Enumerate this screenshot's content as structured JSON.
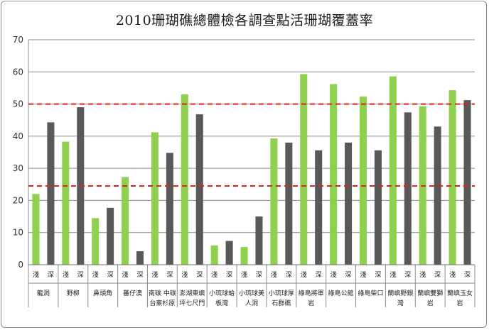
{
  "chart_data": {
    "type": "bar",
    "title": "2010珊瑚礁總體檢各調查點活珊瑚覆蓋率",
    "ylim": [
      0,
      70
    ],
    "yticks": [
      0,
      10,
      20,
      30,
      40,
      50,
      60,
      70
    ],
    "grid": true,
    "reference_lines": [
      50,
      24.5
    ],
    "reference_line_color": "#e0201b",
    "bar_colors": {
      "shallow": "#8fd14f",
      "deep": "#595959"
    },
    "sub_labels": [
      "淺",
      "深"
    ],
    "sites": [
      {
        "label": [
          "龍洞"
        ],
        "shallow": 22,
        "deep": 44.3
      },
      {
        "label": [
          "野柳"
        ],
        "shallow": 38.3,
        "deep": 49
      },
      {
        "label": [
          "鼻頭角"
        ],
        "shallow": 14.5,
        "deep": 17.7
      },
      {
        "label": [
          "蕃仔澳"
        ],
        "shallow": 27.3,
        "deep": 4.2
      },
      {
        "label": [
          "南碳 中碳",
          "台東杉原"
        ],
        "shallow": 41.2,
        "deep": 34.8
      },
      {
        "label": [
          "澎湖東嶼",
          "坪七尺門"
        ],
        "shallow": 53,
        "deep": 46.8
      },
      {
        "label": [
          "小琉球蛤",
          "板灣"
        ],
        "shallow": 6,
        "deep": 7.4
      },
      {
        "label": [
          "小琉球美",
          "人洞"
        ],
        "shallow": 5.5,
        "deep": 15
      },
      {
        "label": [
          "小琉球厚",
          "石群礁"
        ],
        "shallow": 39.3,
        "deep": 38
      },
      {
        "label": [
          "綠島將軍",
          "岩"
        ],
        "shallow": 59.3,
        "deep": 35.6
      },
      {
        "label": [
          "綠島公館"
        ],
        "shallow": 56.2,
        "deep": 38
      },
      {
        "label": [
          "綠島柴口"
        ],
        "shallow": 52.3,
        "deep": 35.6
      },
      {
        "label": [
          "蘭嶼野銀",
          "灣"
        ],
        "shallow": 58.6,
        "deep": 47.4
      },
      {
        "label": [
          "蘭嶼雙獅",
          "岩"
        ],
        "shallow": 49.3,
        "deep": 43
      },
      {
        "label": [
          "蘭嶼玉女",
          "岩"
        ],
        "shallow": 54.3,
        "deep": 51.2
      }
    ]
  }
}
